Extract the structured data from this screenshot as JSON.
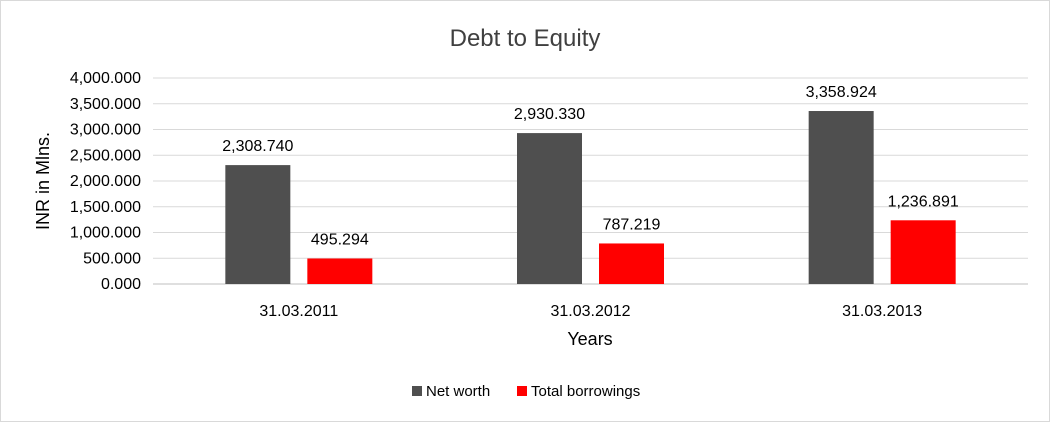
{
  "chart_data": {
    "type": "bar",
    "title": "Debt to Equity",
    "xlabel": "Years",
    "ylabel": "INR in Mlns.",
    "categories": [
      "31.03.2011",
      "31.03.2012",
      "31.03.2013"
    ],
    "series": [
      {
        "name": "Net worth",
        "color": "#4f4f4f",
        "values": [
          2308.74,
          2930.33,
          3358.924
        ],
        "labels": [
          "2,308.740",
          "2,930.330",
          "3,358.924"
        ]
      },
      {
        "name": "Total borrowings",
        "color": "#ff0000",
        "values": [
          495.294,
          787.219,
          1236.891
        ],
        "labels": [
          "495.294",
          "787.219",
          "1,236.891"
        ]
      }
    ],
    "ylim": [
      0,
      4000
    ],
    "yticks": [
      0,
      500,
      1000,
      1500,
      2000,
      2500,
      3000,
      3500,
      4000
    ],
    "ytick_labels": [
      "0.000",
      "500.000",
      "1,000.000",
      "1,500.000",
      "2,000.000",
      "2,500.000",
      "3,000.000",
      "3,500.000",
      "4,000.000"
    ],
    "grid": true,
    "legend_position": "bottom"
  }
}
